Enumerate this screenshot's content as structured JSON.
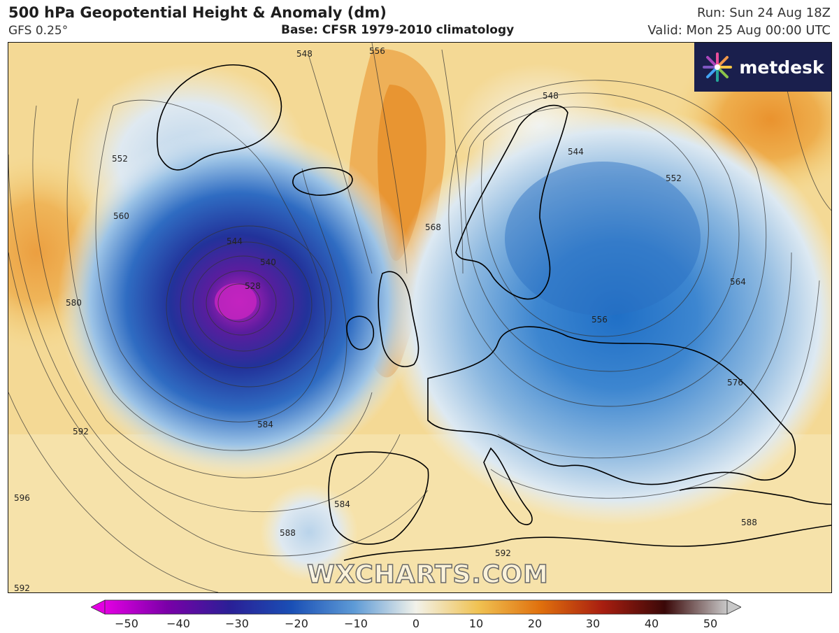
{
  "header": {
    "title": "500 hPa Geopotential Height & Anomaly (dm)",
    "model": "GFS 0.25°",
    "base": "Base: CFSR 1979-2010 climatology",
    "run": "Run: Sun 24 Aug 18Z",
    "valid": "Valid: Mon 25 Aug 00:00 UTC"
  },
  "logo": {
    "text": "metdesk",
    "icon": "starburst-icon"
  },
  "watermark": "WXCHARTS.COM",
  "contour_labels": [
    "548",
    "556",
    "552",
    "560",
    "544",
    "540",
    "528",
    "580",
    "592",
    "584",
    "596",
    "588",
    "592",
    "584",
    "548",
    "544",
    "552",
    "568",
    "556",
    "564",
    "576",
    "588",
    "592"
  ],
  "colorbar": {
    "ticks": [
      "−50",
      "−40",
      "−30",
      "−20",
      "−10",
      "0",
      "10",
      "20",
      "30",
      "40",
      "50"
    ],
    "colors": [
      "#e300e3",
      "#7a00a8",
      "#2a1f96",
      "#1a4fb5",
      "#5d9ad6",
      "#f2f2ea",
      "#f0c252",
      "#e0700d",
      "#a81e10",
      "#3a0808",
      "#c8c8c8"
    ]
  },
  "colors": {
    "low_core": "#b11ab1",
    "deep_blue": "#1f3c9e",
    "anomaly_blue": "#4d86cc",
    "neutral": "#eef0ec",
    "warm_yellow": "#f3d27a",
    "warm_orange": "#e7902a"
  }
}
